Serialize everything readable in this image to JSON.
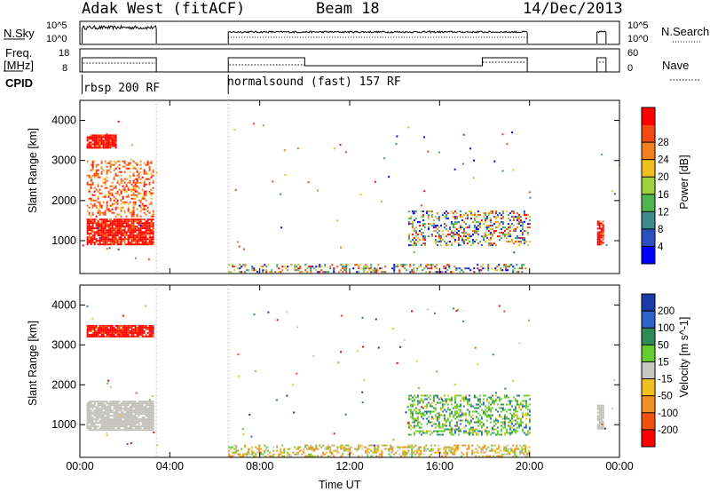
{
  "header": {
    "station": "Adak West (fitACF)",
    "beam": "Beam 18",
    "date": "14/Dec/2013"
  },
  "sky_panel": {
    "left_label": "N.Sky",
    "left_ticks": [
      "10^5",
      "10^0"
    ],
    "right_ticks": [
      "10^5",
      "10^0"
    ],
    "right_label": "N.Search"
  },
  "freq_panel": {
    "left_label_1": "Freq.",
    "left_label_2": "[MHz]",
    "left_ticks": [
      "18",
      "8"
    ],
    "right_ticks": [
      "60",
      "0"
    ],
    "right_label": "Nave"
  },
  "cpid": {
    "label": "CPID",
    "segments": [
      "rbsp 200 RF",
      "normalsound (fast) 157 RF"
    ]
  },
  "colors": {
    "power_scale": [
      "#0000ff",
      "#2a4fbf",
      "#3c8c8c",
      "#4fb44f",
      "#a0d040",
      "#f0c020",
      "#f08020",
      "#f04a10",
      "#ff0000"
    ],
    "velocity_scale": [
      "#1a3aa8",
      "#2f62c8",
      "#2e8b57",
      "#66cc33",
      "#c8c8c0",
      "#f0c020",
      "#f09020",
      "#f05010",
      "#ff0000"
    ],
    "ground_scatter": "#c0c0b8"
  },
  "chart_data": [
    {
      "type": "heatmap",
      "title": "",
      "xlabel": "",
      "ylabel": "Slant Range [km]",
      "xlim": [
        "00:00",
        "24:00"
      ],
      "ylim": [
        180,
        4500
      ],
      "x_ticks": [
        "00:00",
        "04:00",
        "08:00",
        "12:00",
        "16:00",
        "20:00",
        "00:00"
      ],
      "y_ticks": [
        1000,
        2000,
        3000,
        4000
      ],
      "colorbar_label": "Power [dB]",
      "colorbar_ticks": [
        4,
        8,
        12,
        16,
        20,
        24,
        28
      ],
      "regions": [
        {
          "t0": 0.3,
          "t1": 3.3,
          "r0": 900,
          "r1": 1550,
          "level": "red"
        },
        {
          "t0": 0.3,
          "t1": 1.6,
          "r0": 3300,
          "r1": 3650,
          "level": "red"
        },
        {
          "t0": 0.3,
          "t1": 3.3,
          "r0": 1600,
          "r1": 3000,
          "level": "orange"
        },
        {
          "t0": 6.6,
          "t1": 20.0,
          "r0": 220,
          "r1": 420,
          "level": "orange-mixed"
        },
        {
          "t0": 14.6,
          "t1": 20.0,
          "r0": 900,
          "r1": 1750,
          "level": "mixed"
        },
        {
          "t0": 23.0,
          "t1": 23.3,
          "r0": 900,
          "r1": 1500,
          "level": "red"
        }
      ]
    },
    {
      "type": "heatmap",
      "title": "",
      "xlabel": "Time UT",
      "ylabel": "Slant Range [km]",
      "xlim": [
        "00:00",
        "24:00"
      ],
      "ylim": [
        180,
        4500
      ],
      "x_ticks": [
        "00:00",
        "04:00",
        "08:00",
        "12:00",
        "16:00",
        "20:00",
        "00:00"
      ],
      "y_ticks": [
        1000,
        2000,
        3000,
        4000
      ],
      "colorbar_label": "Velocity [m s^-1]",
      "colorbar_ticks": [
        200,
        100,
        50,
        15,
        -15,
        -50,
        -100,
        -200
      ],
      "regions": [
        {
          "t0": 0.3,
          "t1": 3.3,
          "r0": 850,
          "r1": 1600,
          "level": "ground"
        },
        {
          "t0": 0.3,
          "t1": 3.3,
          "r0": 3200,
          "r1": 3500,
          "level": "red"
        },
        {
          "t0": 6.6,
          "t1": 20.0,
          "r0": 220,
          "r1": 500,
          "level": "orange-mixed"
        },
        {
          "t0": 14.6,
          "t1": 20.0,
          "r0": 750,
          "r1": 1750,
          "level": "green-mixed"
        },
        {
          "t0": 23.0,
          "t1": 23.3,
          "r0": 900,
          "r1": 1500,
          "level": "ground"
        }
      ]
    }
  ]
}
